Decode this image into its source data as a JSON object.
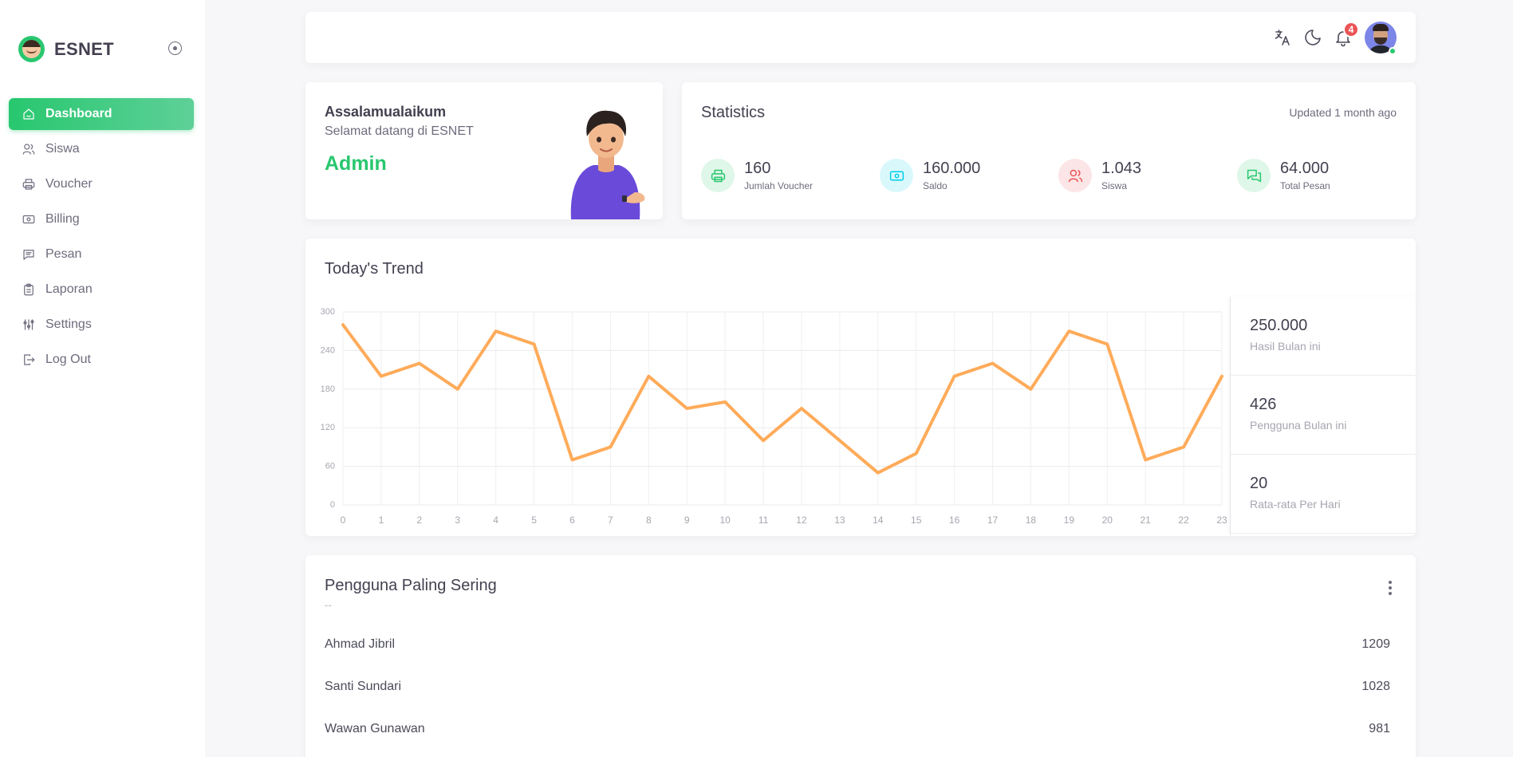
{
  "brand": {
    "name": "ESNET"
  },
  "sidebar": {
    "items": [
      {
        "label": "Dashboard",
        "icon": "home-icon",
        "active": true
      },
      {
        "label": "Siswa",
        "icon": "users-icon"
      },
      {
        "label": "Voucher",
        "icon": "printer-icon"
      },
      {
        "label": "Billing",
        "icon": "cash-icon"
      },
      {
        "label": "Pesan",
        "icon": "message-icon"
      },
      {
        "label": "Laporan",
        "icon": "clipboard-icon"
      },
      {
        "label": "Settings",
        "icon": "sliders-icon"
      },
      {
        "label": "Log Out",
        "icon": "logout-icon"
      }
    ]
  },
  "header": {
    "icons": [
      "translate-icon",
      "moon-icon",
      "bell-icon",
      "user-avatar"
    ],
    "notification_count": "4"
  },
  "welcome": {
    "greeting": "Assalamualaikum",
    "subtitle": "Selamat datang di ESNET",
    "name": "Admin"
  },
  "statistics": {
    "title": "Statistics",
    "updated": "Updated 1 month ago",
    "items": [
      {
        "value": "160",
        "label": "Jumlah Voucher",
        "icon": "printer-icon",
        "color": "#28c76f"
      },
      {
        "value": "160.000",
        "label": "Saldo",
        "icon": "cash-icon",
        "color": "#00cfe8"
      },
      {
        "value": "1.043",
        "label": "Siswa",
        "icon": "users-icon",
        "color": "#ea5455"
      },
      {
        "value": "64.000",
        "label": "Total Pesan",
        "icon": "messages-icon",
        "color": "#28c76f"
      }
    ]
  },
  "trend": {
    "title": "Today's Trend",
    "side_stats": [
      {
        "value": "250.000",
        "label": "Hasil Bulan ini"
      },
      {
        "value": "426",
        "label": "Pengguna Bulan ini"
      },
      {
        "value": "20",
        "label": "Rata-rata Per Hari"
      }
    ]
  },
  "chart_data": {
    "type": "line",
    "title": "",
    "xlabel": "",
    "ylabel": "",
    "x": [
      0,
      1,
      2,
      3,
      4,
      5,
      6,
      7,
      8,
      9,
      10,
      11,
      12,
      13,
      14,
      15,
      16,
      17,
      18,
      19,
      20,
      21,
      22,
      23
    ],
    "series": [
      {
        "values": [
          280,
          200,
          220,
          180,
          270,
          250,
          70,
          90,
          200,
          150,
          160,
          100,
          150,
          100,
          50,
          80,
          200,
          220,
          180,
          270,
          250,
          70,
          90,
          200
        ],
        "color": "#ffab5a"
      }
    ],
    "yticks": [
      0,
      60,
      120,
      180,
      240,
      300
    ],
    "ylim": [
      0,
      300
    ],
    "grid": true,
    "legend": "none"
  },
  "top_users": {
    "title": "Pengguna Paling Sering",
    "subtitle": "--",
    "rows": [
      {
        "name": "Ahmad Jibril",
        "count": "1209"
      },
      {
        "name": "Santi Sundari",
        "count": "1028"
      },
      {
        "name": "Wawan Gunawan",
        "count": "981"
      }
    ]
  }
}
